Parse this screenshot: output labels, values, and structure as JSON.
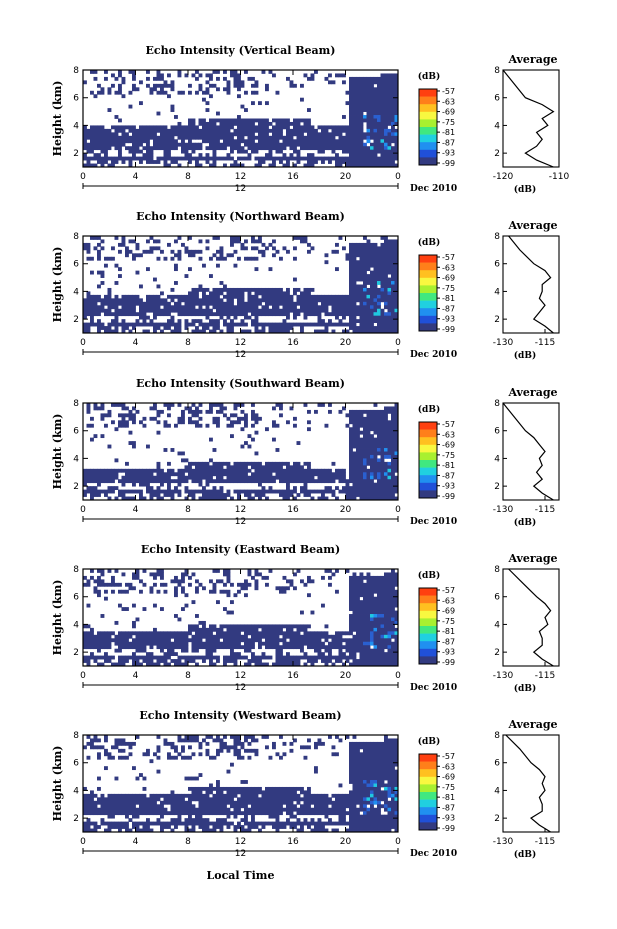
{
  "figure": {
    "xlabel": "Local Time",
    "date_label": "Dec 2010",
    "date_day": "12",
    "ylabel": "Height (km)",
    "avg_title": "Average",
    "avg_xlabel": "(dB)",
    "colorbar_label": "(dB)",
    "colorbar_ticks": [
      "-57",
      "-63",
      "-69",
      "-75",
      "-81",
      "-87",
      "-93",
      "-99"
    ],
    "colorbar_colors": [
      "#ff4010",
      "#ff7f1a",
      "#ffc020",
      "#f8f840",
      "#a8f030",
      "#40e880",
      "#20d0e0",
      "#2090f0",
      "#2050d8",
      "#323a80"
    ],
    "bg_color": "#323a80"
  },
  "chart_data": [
    {
      "type": "heatmap",
      "title": "Echo Intensity (Vertical Beam)",
      "xlabel": "Local Time",
      "ylabel": "Height (km)",
      "xlim": [
        0,
        24
      ],
      "ylim": [
        1,
        8
      ],
      "x_ticks": [
        "0",
        "4",
        "8",
        "12",
        "16",
        "20",
        "0"
      ],
      "y_ticks": [
        "2",
        "4",
        "6",
        "8"
      ],
      "average_profile": {
        "xlim": [
          -120,
          -110
        ],
        "x_ticks": [
          "-120",
          "-110"
        ],
        "heights": [
          8,
          7,
          6,
          5.5,
          5,
          4.5,
          4,
          3.5,
          3,
          2.5,
          2,
          1.5,
          1
        ],
        "values": [
          -120,
          -118,
          -116,
          -113,
          -111,
          -113,
          -112,
          -114,
          -113,
          -114,
          -116,
          -114,
          -111
        ]
      }
    },
    {
      "type": "heatmap",
      "title": "Echo Intensity (Northward Beam)",
      "xlabel": "Local Time",
      "ylabel": "Height (km)",
      "xlim": [
        0,
        24
      ],
      "ylim": [
        1,
        8
      ],
      "x_ticks": [
        "0",
        "4",
        "8",
        "12",
        "16",
        "20",
        "0"
      ],
      "y_ticks": [
        "2",
        "4",
        "6",
        "8"
      ],
      "average_profile": {
        "xlim": [
          -130,
          -110
        ],
        "x_ticks": [
          "-130",
          "-115"
        ],
        "heights": [
          8,
          7,
          6,
          5.5,
          5,
          4.5,
          4,
          3.5,
          3,
          2.5,
          2,
          1.5,
          1
        ],
        "values": [
          -128,
          -124,
          -119,
          -115,
          -113,
          -116,
          -116,
          -117,
          -115,
          -117,
          -119,
          -115,
          -112
        ]
      }
    },
    {
      "type": "heatmap",
      "title": "Echo Intensity (Southward Beam)",
      "xlabel": "Local Time",
      "ylabel": "Height (km)",
      "xlim": [
        0,
        24
      ],
      "ylim": [
        1,
        8
      ],
      "x_ticks": [
        "0",
        "4",
        "8",
        "12",
        "16",
        "20",
        "0"
      ],
      "y_ticks": [
        "2",
        "4",
        "6",
        "8"
      ],
      "average_profile": {
        "xlim": [
          -130,
          -110
        ],
        "x_ticks": [
          "-130",
          "-115"
        ],
        "heights": [
          8,
          7,
          6,
          5.5,
          5,
          4.5,
          4,
          3.5,
          3,
          2.5,
          2,
          1.5,
          1
        ],
        "values": [
          -130,
          -126,
          -122,
          -119,
          -117,
          -115,
          -117,
          -116,
          -118,
          -116,
          -119,
          -116,
          -112
        ]
      }
    },
    {
      "type": "heatmap",
      "title": "Echo Intensity (Eastward Beam)",
      "xlabel": "Local Time",
      "ylabel": "Height (km)",
      "xlim": [
        0,
        24
      ],
      "ylim": [
        1,
        8
      ],
      "x_ticks": [
        "0",
        "4",
        "8",
        "12",
        "16",
        "20",
        "0"
      ],
      "y_ticks": [
        "2",
        "4",
        "6",
        "8"
      ],
      "average_profile": {
        "xlim": [
          -130,
          -110
        ],
        "x_ticks": [
          "-130",
          "-115"
        ],
        "heights": [
          8,
          7,
          6,
          5.5,
          5,
          4.5,
          4,
          3.5,
          3,
          2.5,
          2,
          1.5,
          1
        ],
        "values": [
          -128,
          -123,
          -118,
          -115,
          -113,
          -115,
          -114,
          -117,
          -116,
          -116,
          -119,
          -116,
          -112
        ]
      }
    },
    {
      "type": "heatmap",
      "title": "Echo Intensity (Westward Beam)",
      "xlabel": "Local Time",
      "ylabel": "Height (km)",
      "xlim": [
        0,
        24
      ],
      "ylim": [
        1,
        8
      ],
      "x_ticks": [
        "0",
        "4",
        "8",
        "12",
        "16",
        "20",
        "0"
      ],
      "y_ticks": [
        "2",
        "4",
        "6",
        "8"
      ],
      "average_profile": {
        "xlim": [
          -130,
          -110
        ],
        "x_ticks": [
          "-130",
          "-115"
        ],
        "heights": [
          8,
          7,
          6,
          5.5,
          5,
          4.5,
          4,
          3.5,
          3,
          2.5,
          2,
          1.5,
          1
        ],
        "values": [
          -129,
          -124,
          -120,
          -117,
          -115,
          -116,
          -115,
          -117,
          -116,
          -116,
          -120,
          -117,
          -113
        ]
      }
    }
  ]
}
